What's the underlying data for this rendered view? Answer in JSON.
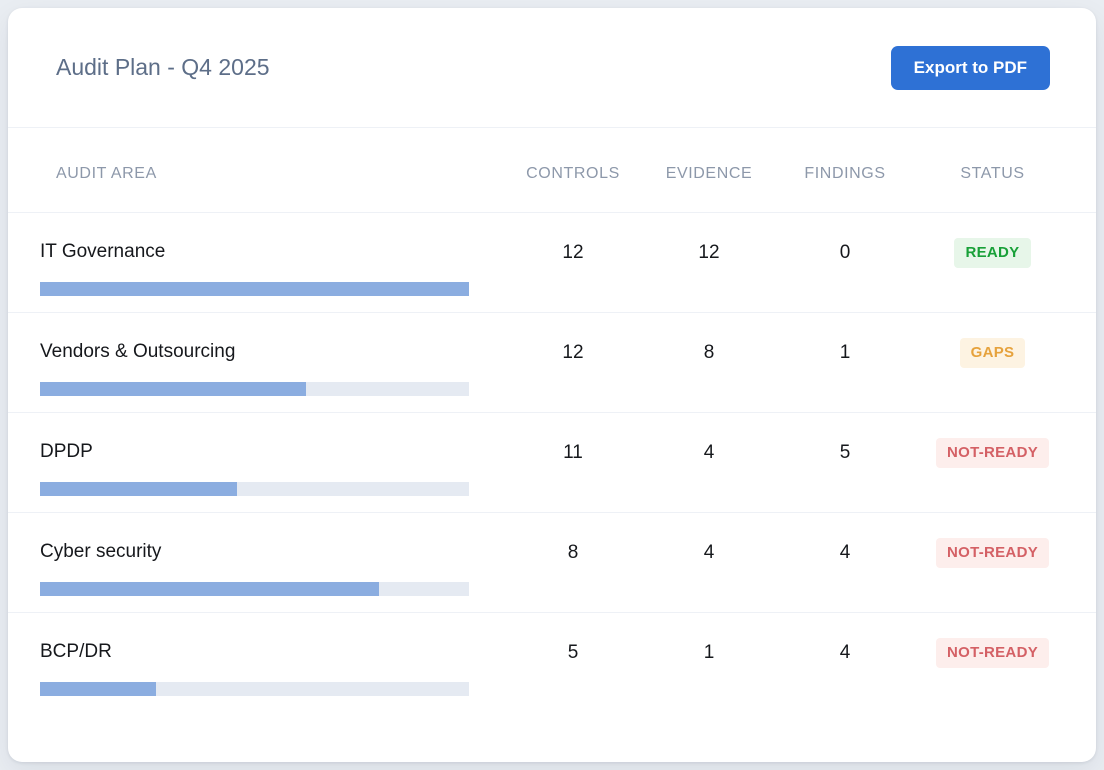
{
  "header": {
    "title": "Audit Plan - Q4 2025",
    "export_button": "Export to PDF"
  },
  "table": {
    "columns": [
      "AUDIT AREA",
      "CONTROLS",
      "EVIDENCE",
      "FINDINGS",
      "STATUS"
    ],
    "rows": [
      {
        "area": "IT Governance",
        "controls": "12",
        "evidence": "12",
        "findings": "0",
        "status": "READY",
        "status_type": "ready",
        "progress_pct": 100
      },
      {
        "area": "Vendors & Outsourcing",
        "controls": "12",
        "evidence": "8",
        "findings": "1",
        "status": "GAPS",
        "status_type": "gaps",
        "progress_pct": 62
      },
      {
        "area": "DPDP",
        "controls": "11",
        "evidence": "4",
        "findings": "5",
        "status": "NOT-READY",
        "status_type": "not-ready",
        "progress_pct": 46
      },
      {
        "area": "Cyber security",
        "controls": "8",
        "evidence": "4",
        "findings": "4",
        "status": "NOT-READY",
        "status_type": "not-ready",
        "progress_pct": 79
      },
      {
        "area": "BCP/DR",
        "controls": "5",
        "evidence": "1",
        "findings": "4",
        "status": "NOT-READY",
        "status_type": "not-ready",
        "progress_pct": 27
      }
    ]
  },
  "colors": {
    "accent_blue": "#2e71d5",
    "bar_fill": "#8bade0",
    "bar_track": "#e5eaf2",
    "ready_bg": "#e7f6e9",
    "ready_text": "#18a038",
    "gaps_bg": "#fdf3e2",
    "gaps_text": "#e6a23c",
    "not_ready_bg": "#fdeeec",
    "not_ready_text": "#d46065"
  }
}
